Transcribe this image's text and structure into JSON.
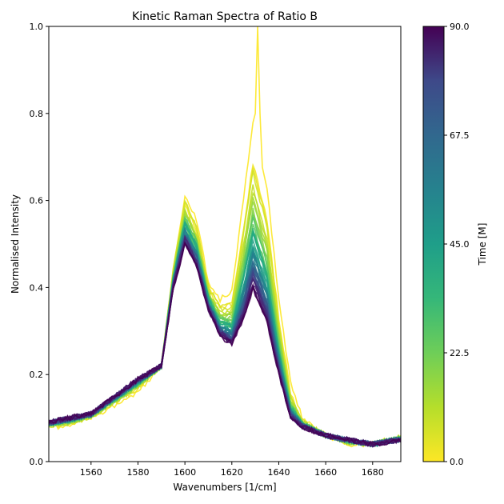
{
  "chart_data": {
    "type": "line",
    "title": "Kinetic Raman Spectra of Ratio B",
    "xlabel": "Wavenumbers [1/cm]",
    "ylabel": "Normalised Intensity",
    "xlim": [
      1542,
      1692
    ],
    "ylim": [
      0,
      1.0
    ],
    "x_ticks": [
      1560,
      1580,
      1600,
      1620,
      1640,
      1660,
      1680
    ],
    "x_tick_labels": [
      "1560",
      "1580",
      "1600",
      "1620",
      "1640",
      "1660",
      "1680"
    ],
    "y_ticks": [
      0.0,
      0.2,
      0.4,
      0.6,
      0.8,
      1.0
    ],
    "y_tick_labels": [
      "0.0",
      "0.2",
      "0.4",
      "0.6",
      "0.8",
      "1.0"
    ],
    "grid": false,
    "legend": "none",
    "colormap": "viridis_r",
    "colorbar": {
      "label": "Time [M]",
      "min": 0.0,
      "max": 90.0,
      "ticks": [
        0.0,
        22.5,
        45.0,
        67.5,
        90.0
      ],
      "tick_labels": [
        "0.0",
        "22.5",
        "45.0",
        "67.5",
        "90.0"
      ]
    },
    "series_count": 46,
    "series_time_min": [
      0,
      2,
      4,
      6,
      8,
      10,
      12,
      14,
      16,
      18,
      20,
      22,
      24,
      26,
      28,
      30,
      32,
      34,
      36,
      38,
      40,
      42,
      44,
      46,
      48,
      50,
      52,
      54,
      56,
      58,
      60,
      62,
      64,
      66,
      68,
      70,
      72,
      74,
      76,
      78,
      80,
      82,
      84,
      86,
      88,
      90
    ],
    "peak_positions": [
      1601,
      1629
    ],
    "series_summary": {
      "x": [
        1542,
        1550,
        1560,
        1570,
        1580,
        1590,
        1595,
        1600,
        1605,
        1610,
        1615,
        1620,
        1625,
        1629,
        1635,
        1640,
        1645,
        1650,
        1660,
        1670,
        1680,
        1692
      ],
      "early_values": [
        0.08,
        0.08,
        0.1,
        0.13,
        0.16,
        0.22,
        0.45,
        0.63,
        0.57,
        0.42,
        0.38,
        0.4,
        0.62,
        0.8,
        0.65,
        0.38,
        0.18,
        0.1,
        0.06,
        0.04,
        0.04,
        0.06
      ],
      "late_values": [
        0.09,
        0.1,
        0.11,
        0.15,
        0.19,
        0.22,
        0.4,
        0.5,
        0.45,
        0.35,
        0.29,
        0.27,
        0.33,
        0.4,
        0.32,
        0.2,
        0.1,
        0.08,
        0.06,
        0.05,
        0.04,
        0.05
      ],
      "max_spike": {
        "x": 1631,
        "y": 1.0
      }
    }
  }
}
